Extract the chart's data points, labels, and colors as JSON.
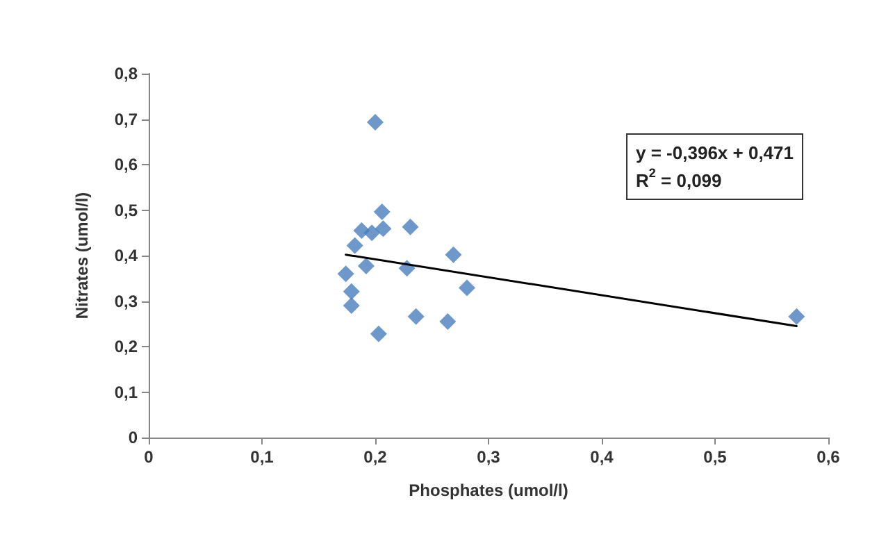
{
  "chart_data": {
    "type": "scatter",
    "xlabel": "Phosphates (umol/l)",
    "ylabel": "Nitrates (umol/l)",
    "marker": "diamond",
    "grid": false,
    "xlim": [
      0,
      0.6
    ],
    "ylim": [
      0,
      0.8
    ],
    "xticks": [
      0,
      {
        "value": 0.1,
        "label": "0,1"
      },
      {
        "value": 0.2,
        "label": "0,2"
      },
      {
        "value": 0.3,
        "label": "0,3"
      },
      {
        "value": 0.4,
        "label": "0,4"
      },
      {
        "value": 0.5,
        "label": "0,5"
      },
      {
        "value": 0.6,
        "label": "0,6"
      }
    ],
    "yticks": [
      0,
      {
        "value": 0.1,
        "label": "0,1"
      },
      {
        "value": 0.2,
        "label": "0,2"
      },
      {
        "value": 0.3,
        "label": "0,3"
      },
      {
        "value": 0.4,
        "label": "0,4"
      },
      {
        "value": 0.5,
        "label": "0,5"
      },
      {
        "value": 0.6,
        "label": "0,6"
      },
      {
        "value": 0.7,
        "label": "0,7"
      },
      {
        "value": 0.8,
        "label": "0,8"
      }
    ],
    "series": [
      {
        "color": "#4a7ebb",
        "x": [
          0.2,
          0.206,
          0.231,
          0.188,
          0.197,
          0.207,
          0.182,
          0.269,
          0.192,
          0.228,
          0.174,
          0.179,
          0.281,
          0.179,
          0.236,
          0.264,
          0.203,
          0.572
        ],
        "values": [
          0.693,
          0.496,
          0.463,
          0.455,
          0.45,
          0.459,
          0.422,
          0.402,
          0.377,
          0.372,
          0.36,
          0.321,
          0.329,
          0.29,
          0.266,
          0.255,
          0.228,
          0.266
        ]
      },
      {
        "type": "line",
        "color": "#000000",
        "marker": "none",
        "x": [
          0.174,
          0.572
        ],
        "values": [
          0.402,
          0.245
        ]
      }
    ],
    "annotations": [
      "y = -0,396x + 0,471\nR$^{2}$ = 0,099"
    ]
  }
}
